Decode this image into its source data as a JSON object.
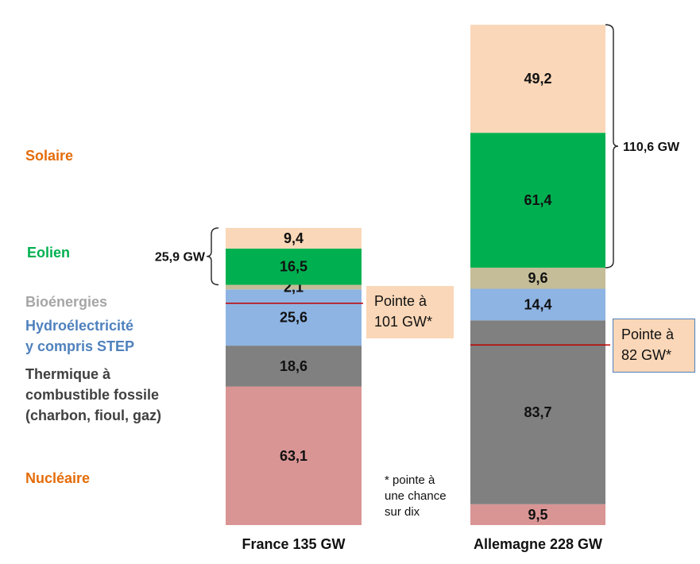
{
  "chart_data": {
    "type": "bar",
    "stacked": true,
    "categories": [
      "France 135 GW",
      "Allemagne 228 GW"
    ],
    "series": [
      {
        "name": "Nucléaire",
        "color": "#d99594",
        "values": [
          63.1,
          9.5
        ],
        "labels": [
          "63,1",
          "9,5"
        ]
      },
      {
        "name": "Thermique à combustible fossile (charbon, fioul, gaz)",
        "color": "#808080",
        "values": [
          18.6,
          83.7
        ],
        "labels": [
          "18,6",
          "83,7"
        ]
      },
      {
        "name": "Hydroélectricité y compris STEP",
        "color": "#8eb4e3",
        "values": [
          25.6,
          14.4
        ],
        "labels": [
          "25,6",
          "14,4"
        ]
      },
      {
        "name": "Bioénergies",
        "color": "#c4bd97",
        "values": [
          2.1,
          9.6
        ],
        "labels": [
          "2,1",
          "9,6"
        ]
      },
      {
        "name": "Eolien",
        "color": "#00b050",
        "values": [
          16.5,
          61.4
        ],
        "labels": [
          "16,5",
          "61,4"
        ]
      },
      {
        "name": "Solaire",
        "color": "#fad7b8",
        "values": [
          9.4,
          49.2
        ],
        "labels": [
          "9,4",
          "49,2"
        ]
      }
    ],
    "legend": [
      {
        "text": "Solaire",
        "color": "#e46c0a"
      },
      {
        "text": "Eolien",
        "color": "#00b050"
      },
      {
        "text": "Bioénergies",
        "color": "#a6a6a6"
      },
      {
        "text": "Hydroélectricité\ny compris STEP",
        "color": "#4f81bd"
      },
      {
        "text": "Thermique à\ncombustible fossile\n(charbon, fioul, gaz)",
        "color": "#404040"
      },
      {
        "text": "Nucléaire",
        "color": "#e46c0a"
      }
    ],
    "braces": [
      {
        "category": "France 135 GW",
        "label": "25,9 GW",
        "value": 25.9,
        "side": "left"
      },
      {
        "category": "Allemagne 228 GW",
        "label": "110,6 GW",
        "value": 110.6,
        "side": "right"
      }
    ],
    "peaks": [
      {
        "category": "France 135 GW",
        "value": 101,
        "text": "Pointe à\n101 GW*",
        "line_color": "#c00000",
        "box_color": "#fad7b8"
      },
      {
        "category": "Allemagne 228 GW",
        "value": 82,
        "text": "Pointe à\n82 GW*",
        "line_color": "#c00000",
        "box_color": "#fad7b8",
        "box_border": "#4f81bd"
      }
    ],
    "footnote": "* pointe à\nune chance\nsur dix"
  }
}
